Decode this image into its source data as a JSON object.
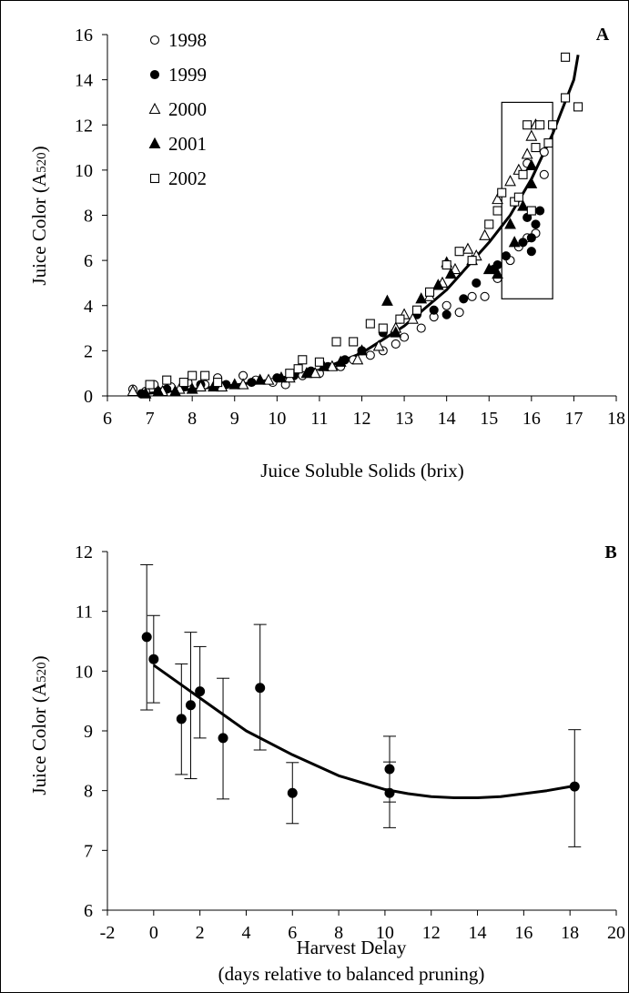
{
  "chart_data": [
    {
      "type": "scatter",
      "panel_label": "A",
      "xlabel": "Juice Soluble Solids (brix)",
      "ylabel_main": "Juice Color (A",
      "ylabel_sub": "520",
      "ylabel_end": ")",
      "xlim": [
        6,
        18
      ],
      "ylim": [
        0,
        16
      ],
      "xticks": [
        6,
        7,
        8,
        9,
        10,
        11,
        12,
        13,
        14,
        15,
        16,
        17,
        18
      ],
      "yticks": [
        0,
        2,
        4,
        6,
        8,
        10,
        12,
        14,
        16
      ],
      "legend_position": "top-left",
      "series": [
        {
          "name": "1998",
          "marker": "open-circle",
          "points": [
            [
              6.6,
              0.3
            ],
            [
              6.9,
              0.2
            ],
            [
              7.1,
              0.5
            ],
            [
              7.5,
              0.4
            ],
            [
              7.9,
              0.6
            ],
            [
              8.3,
              0.5
            ],
            [
              8.6,
              0.8
            ],
            [
              9.2,
              0.9
            ],
            [
              9.5,
              0.7
            ],
            [
              9.9,
              0.6
            ],
            [
              10.2,
              0.5
            ],
            [
              10.6,
              0.9
            ],
            [
              11.0,
              1.0
            ],
            [
              11.5,
              1.3
            ],
            [
              11.8,
              1.6
            ],
            [
              12.2,
              1.8
            ],
            [
              12.5,
              2.0
            ],
            [
              12.8,
              2.3
            ],
            [
              13.0,
              2.6
            ],
            [
              13.4,
              3.0
            ],
            [
              13.7,
              3.5
            ],
            [
              14.0,
              4.0
            ],
            [
              14.3,
              3.7
            ],
            [
              14.6,
              4.4
            ],
            [
              14.9,
              4.4
            ],
            [
              15.2,
              5.2
            ],
            [
              15.5,
              6.0
            ],
            [
              15.7,
              6.6
            ],
            [
              15.9,
              7.0
            ],
            [
              16.1,
              7.2
            ],
            [
              16.3,
              9.8
            ],
            [
              16.3,
              10.8
            ],
            [
              15.9,
              10.3
            ]
          ]
        },
        {
          "name": "1999",
          "marker": "filled-circle",
          "points": [
            [
              6.8,
              0.1
            ],
            [
              7.2,
              0.2
            ],
            [
              7.4,
              0.3
            ],
            [
              7.8,
              0.4
            ],
            [
              8.2,
              0.5
            ],
            [
              8.8,
              0.5
            ],
            [
              9.4,
              0.6
            ],
            [
              10.0,
              0.8
            ],
            [
              10.4,
              0.9
            ],
            [
              10.8,
              1.1
            ],
            [
              11.2,
              1.3
            ],
            [
              11.6,
              1.6
            ],
            [
              12.0,
              2.0
            ],
            [
              12.5,
              2.8
            ],
            [
              12.9,
              3.4
            ],
            [
              13.3,
              3.6
            ],
            [
              13.7,
              3.8
            ],
            [
              14.0,
              3.6
            ],
            [
              14.4,
              4.3
            ],
            [
              14.7,
              5.0
            ],
            [
              15.1,
              5.6
            ],
            [
              15.4,
              6.2
            ],
            [
              15.8,
              6.8
            ],
            [
              16.0,
              7.0
            ],
            [
              16.1,
              7.6
            ],
            [
              16.0,
              6.4
            ],
            [
              15.9,
              7.9
            ],
            [
              16.2,
              8.2
            ],
            [
              15.2,
              5.8
            ]
          ]
        },
        {
          "name": "2000",
          "marker": "open-triangle",
          "points": [
            [
              6.6,
              0.2
            ],
            [
              6.9,
              0.1
            ],
            [
              7.3,
              0.2
            ],
            [
              7.7,
              0.3
            ],
            [
              8.2,
              0.4
            ],
            [
              8.7,
              0.4
            ],
            [
              9.2,
              0.5
            ],
            [
              9.8,
              0.7
            ],
            [
              10.3,
              0.8
            ],
            [
              10.9,
              1.0
            ],
            [
              11.3,
              1.3
            ],
            [
              11.9,
              1.6
            ],
            [
              12.4,
              2.2
            ],
            [
              12.8,
              3.0
            ],
            [
              13.2,
              3.4
            ],
            [
              13.6,
              4.4
            ],
            [
              13.9,
              5.0
            ],
            [
              14.2,
              5.6
            ],
            [
              14.5,
              6.5
            ],
            [
              14.9,
              7.1
            ],
            [
              15.2,
              8.7
            ],
            [
              15.5,
              9.5
            ],
            [
              15.7,
              10.0
            ],
            [
              15.9,
              10.7
            ],
            [
              16.0,
              11.5
            ],
            [
              16.1,
              12.0
            ],
            [
              13.0,
              3.6
            ],
            [
              14.7,
              6.2
            ]
          ]
        },
        {
          "name": "2001",
          "marker": "filled-triangle",
          "points": [
            [
              6.9,
              0.1
            ],
            [
              7.2,
              0.2
            ],
            [
              7.6,
              0.2
            ],
            [
              8.0,
              0.3
            ],
            [
              8.5,
              0.4
            ],
            [
              9.0,
              0.5
            ],
            [
              9.6,
              0.7
            ],
            [
              10.1,
              0.8
            ],
            [
              10.7,
              1.0
            ],
            [
              11.1,
              1.3
            ],
            [
              11.5,
              1.5
            ],
            [
              12.0,
              2.0
            ],
            [
              12.6,
              4.2
            ],
            [
              12.8,
              2.8
            ],
            [
              13.4,
              4.3
            ],
            [
              13.8,
              4.9
            ],
            [
              14.1,
              5.4
            ],
            [
              14.6,
              6.0
            ],
            [
              15.0,
              5.6
            ],
            [
              15.2,
              5.4
            ],
            [
              15.5,
              7.6
            ],
            [
              15.8,
              8.4
            ],
            [
              16.0,
              9.4
            ],
            [
              16.0,
              10.2
            ],
            [
              14.0,
              5.9
            ],
            [
              15.6,
              6.8
            ]
          ]
        },
        {
          "name": "2002",
          "marker": "open-square",
          "points": [
            [
              7.0,
              0.5
            ],
            [
              7.4,
              0.7
            ],
            [
              7.8,
              0.6
            ],
            [
              8.0,
              0.9
            ],
            [
              8.3,
              0.9
            ],
            [
              8.6,
              0.6
            ],
            [
              10.3,
              1.0
            ],
            [
              10.5,
              1.2
            ],
            [
              10.6,
              1.6
            ],
            [
              11.0,
              1.5
            ],
            [
              11.4,
              2.4
            ],
            [
              11.8,
              2.4
            ],
            [
              12.2,
              3.2
            ],
            [
              12.5,
              3.0
            ],
            [
              12.9,
              3.4
            ],
            [
              13.3,
              3.8
            ],
            [
              13.6,
              4.6
            ],
            [
              14.0,
              5.8
            ],
            [
              14.3,
              6.4
            ],
            [
              14.6,
              6.0
            ],
            [
              15.0,
              7.6
            ],
            [
              15.2,
              8.2
            ],
            [
              15.3,
              9.0
            ],
            [
              15.6,
              8.6
            ],
            [
              15.8,
              9.8
            ],
            [
              15.9,
              12.0
            ],
            [
              16.0,
              8.2
            ],
            [
              16.1,
              11.0
            ],
            [
              16.2,
              12.0
            ],
            [
              16.4,
              11.2
            ],
            [
              16.5,
              12.0
            ],
            [
              16.8,
              13.2
            ],
            [
              17.1,
              12.8
            ],
            [
              16.8,
              15.0
            ],
            [
              15.7,
              8.8
            ]
          ]
        }
      ],
      "trendline": {
        "type": "exponential",
        "points": [
          [
            6.6,
            0.05
          ],
          [
            7,
            0.12
          ],
          [
            8,
            0.3
          ],
          [
            9,
            0.48
          ],
          [
            10,
            0.75
          ],
          [
            11,
            1.15
          ],
          [
            12,
            1.9
          ],
          [
            13,
            3.1
          ],
          [
            14,
            4.7
          ],
          [
            15,
            6.8
          ],
          [
            15.5,
            8.0
          ],
          [
            16,
            9.6
          ],
          [
            16.5,
            11.6
          ],
          [
            17,
            14.0
          ],
          [
            17.1,
            15.1
          ]
        ]
      },
      "highlight_box": {
        "x": [
          15.3,
          16.5
        ],
        "y": [
          4.3,
          13.0
        ]
      }
    },
    {
      "type": "scatter",
      "panel_label": "B",
      "xlabel": "Harvest Delay",
      "xlabel2": "(days relative to balanced pruning)",
      "ylabel_main": "Juice Color (A",
      "ylabel_sub": "520",
      "ylabel_end": ")",
      "xlim": [
        -2,
        20
      ],
      "ylim": [
        6,
        12
      ],
      "xticks": [
        -2,
        0,
        2,
        4,
        6,
        8,
        10,
        12,
        14,
        16,
        18,
        20
      ],
      "yticks": [
        6,
        7,
        8,
        9,
        10,
        11,
        12
      ],
      "series": [
        {
          "name": "",
          "marker": "filled-circle",
          "points": [
            {
              "x": -0.3,
              "y": 10.57,
              "err_lo": 9.35,
              "err_hi": 11.78
            },
            {
              "x": 0.0,
              "y": 10.2,
              "err_lo": 9.47,
              "err_hi": 10.93
            },
            {
              "x": 1.2,
              "y": 9.2,
              "err_lo": 8.27,
              "err_hi": 10.12
            },
            {
              "x": 1.6,
              "y": 9.43,
              "err_lo": 8.2,
              "err_hi": 10.65
            },
            {
              "x": 2.0,
              "y": 9.66,
              "err_lo": 8.88,
              "err_hi": 10.41
            },
            {
              "x": 3.0,
              "y": 8.88,
              "err_lo": 7.86,
              "err_hi": 9.88
            },
            {
              "x": 4.6,
              "y": 9.72,
              "err_lo": 8.68,
              "err_hi": 10.78
            },
            {
              "x": 6.0,
              "y": 7.96,
              "err_lo": 7.45,
              "err_hi": 8.47
            },
            {
              "x": 10.2,
              "y": 8.36,
              "err_lo": 7.81,
              "err_hi": 8.91
            },
            {
              "x": 10.2,
              "y": 7.96,
              "err_lo": 7.38,
              "err_hi": 8.48
            },
            {
              "x": 18.2,
              "y": 8.07,
              "err_lo": 7.06,
              "err_hi": 9.02
            }
          ]
        }
      ],
      "trendline": {
        "type": "polynomial",
        "points": [
          [
            0,
            10.1
          ],
          [
            2,
            9.55
          ],
          [
            4,
            9.0
          ],
          [
            6,
            8.6
          ],
          [
            8,
            8.25
          ],
          [
            10,
            8.02
          ],
          [
            11,
            7.95
          ],
          [
            12,
            7.9
          ],
          [
            13,
            7.88
          ],
          [
            14,
            7.88
          ],
          [
            15,
            7.9
          ],
          [
            16,
            7.95
          ],
          [
            17,
            8.0
          ],
          [
            18.2,
            8.08
          ]
        ]
      }
    }
  ]
}
